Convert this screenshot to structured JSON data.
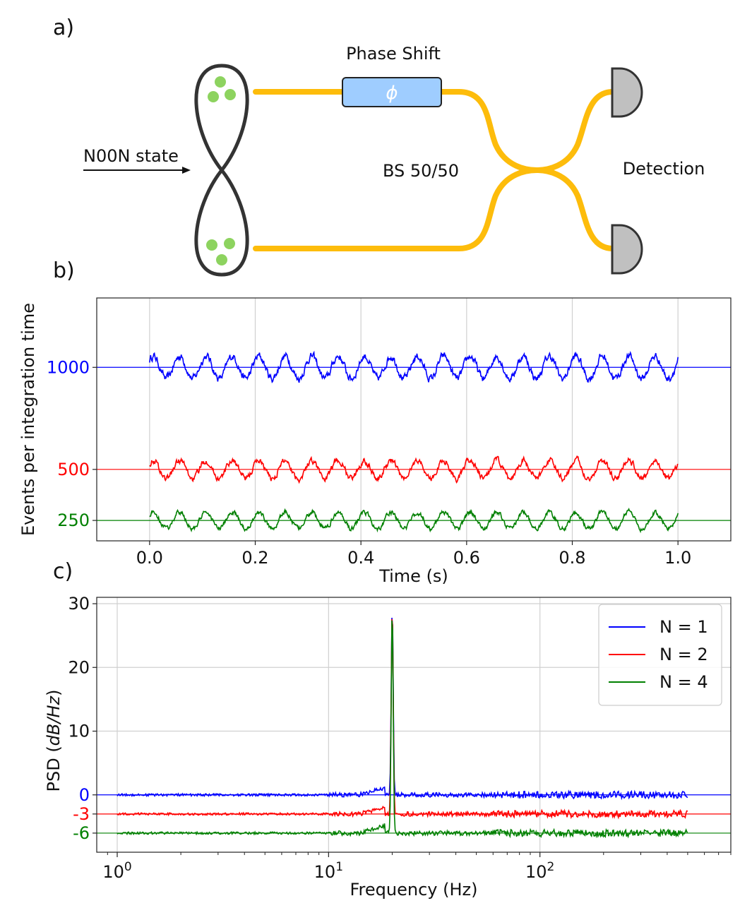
{
  "panel_labels": {
    "a": "a)",
    "b": "b)",
    "c": "c)"
  },
  "setup": {
    "phase_shift_label": "Phase Shift",
    "phi_symbol": "ϕ",
    "input_label": "N00N state",
    "beamsplitter_label": "BS 50/50",
    "detection_label": "Detection",
    "colors": {
      "fiber": "#fdbc0b",
      "phase_box": "#9fcdff",
      "photon": "#8dd35f",
      "detector": "#c0c0c0"
    }
  },
  "chart_data": [
    {
      "type": "line",
      "xlabel": "Time (s)",
      "ylabel": "Events per integration time",
      "xlim": [
        -0.1,
        1.1
      ],
      "ylim": [
        150,
        1340
      ],
      "x_ticks": [
        "0.0",
        "0.2",
        "0.4",
        "0.6",
        "0.8",
        "1.0"
      ],
      "y_ticks": [
        {
          "value": 1000,
          "label": "1000",
          "color": "#0000ff"
        },
        {
          "value": 500,
          "label": "500",
          "color": "#ff0000"
        },
        {
          "value": 250,
          "label": "250",
          "color": "#008000"
        }
      ],
      "grid": "vertical",
      "series": [
        {
          "color": "#0000ff",
          "mean": 1000,
          "amplitude": 55,
          "frequency_hz": 20,
          "noise": 25,
          "points": 1000,
          "x_range": [
            0,
            1
          ]
        },
        {
          "color": "#ff0000",
          "mean": 500,
          "amplitude": 45,
          "frequency_hz": 20,
          "noise": 20,
          "points": 1000,
          "x_range": [
            0,
            1
          ]
        },
        {
          "color": "#008000",
          "mean": 250,
          "amplitude": 40,
          "frequency_hz": 20,
          "noise": 15,
          "points": 1000,
          "x_range": [
            0,
            1
          ]
        }
      ]
    },
    {
      "type": "line",
      "xlabel": "Frequency (Hz)",
      "ylabel_main": "PSD (",
      "ylabel_unit": "dB/Hz",
      "ylabel_close": ")",
      "xscale": "log",
      "xlim": [
        0.8,
        800
      ],
      "ylim": [
        -9,
        31
      ],
      "x_ticks": [
        {
          "value": 1,
          "base": "10",
          "exp": "0"
        },
        {
          "value": 10,
          "base": "10",
          "exp": "1"
        },
        {
          "value": 100,
          "base": "10",
          "exp": "2"
        }
      ],
      "y_ticks": [
        {
          "value": 30,
          "label": "30",
          "color": "#111111"
        },
        {
          "value": 20,
          "label": "20",
          "color": "#111111"
        },
        {
          "value": 10,
          "label": "10",
          "color": "#111111"
        },
        {
          "value": 0,
          "label": "0",
          "color": "#0000ff"
        },
        {
          "value": -3,
          "label": "-3",
          "color": "#ff0000"
        },
        {
          "value": -6,
          "label": "-6",
          "color": "#008000"
        }
      ],
      "grid": "both",
      "legend_position": "top-right",
      "series": [
        {
          "name": "N = 1",
          "color": "#0000ff",
          "baseline_db": 0,
          "peak_freq_hz": 20,
          "peak_db": 30,
          "x_range": [
            1,
            500
          ]
        },
        {
          "name": "N = 2",
          "color": "#ff0000",
          "baseline_db": -3,
          "peak_freq_hz": 20,
          "peak_db": 30,
          "x_range": [
            1,
            500
          ]
        },
        {
          "name": "N = 4",
          "color": "#008000",
          "baseline_db": -6,
          "peak_freq_hz": 20,
          "peak_db": 30,
          "x_range": [
            1,
            500
          ]
        }
      ]
    }
  ]
}
